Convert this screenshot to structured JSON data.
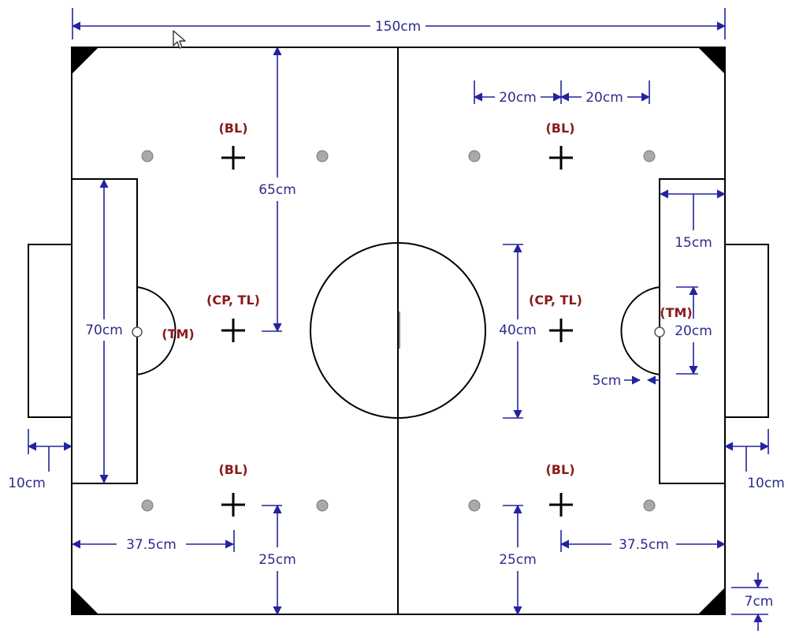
{
  "diagram": {
    "total_width_label": "150cm",
    "dimensions": {
      "spot_depth": "65cm",
      "goal_area_height": "70cm",
      "circle_diameter": "40cm",
      "spot_spacing_a": "20cm",
      "spot_spacing_b": "20cm",
      "goal_area_depth": "15cm",
      "penalty_arc_height": "20cm",
      "arc_gap": "5cm",
      "goal_depth_left": "10cm",
      "goal_depth_right": "10cm",
      "spot_from_goal_left": "37.5cm",
      "spot_from_goal_right": "37.5cm",
      "spot_from_side_left": "25cm",
      "spot_from_side_right": "25cm",
      "corner_size": "7cm"
    },
    "roles": {
      "left_top": "(BL)",
      "left_center": "(CP, TL)",
      "left_bottom": "(BL)",
      "left_goal_marker": "(TM)",
      "right_top": "(BL)",
      "right_center": "(CP, TL)",
      "right_bottom": "(BL)",
      "right_goal_marker": "(TM)"
    },
    "colors": {
      "field_lines": "#000000",
      "dimension_lines": "#2323a0",
      "dimension_text": "#2c2c8c",
      "role_text": "#8b1a1a",
      "spot_fill": "#a9a9a9",
      "background": "#ffffff"
    },
    "icons": [
      "mouse-cursor-icon"
    ]
  }
}
